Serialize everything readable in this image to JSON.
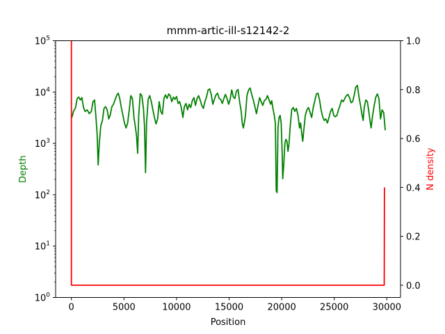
{
  "chart_data": {
    "type": "line",
    "title": "mmm-artic-ill-s12142-2",
    "xlabel": "Position",
    "ylabel_left": "Depth",
    "ylabel_right": "N density",
    "xlim": [
      -1500,
      31300
    ],
    "xticks": [
      0,
      5000,
      10000,
      15000,
      20000,
      25000,
      30000
    ],
    "xtick_labels": [
      "0",
      "5000",
      "10000",
      "15000",
      "20000",
      "25000",
      "30000"
    ],
    "ylim_left": [
      1,
      100000
    ],
    "yscale_left": "log",
    "yticks_left": [
      {
        "base": "10",
        "exp": "0",
        "value": 1
      },
      {
        "base": "10",
        "exp": "1",
        "value": 10
      },
      {
        "base": "10",
        "exp": "2",
        "value": 100
      },
      {
        "base": "10",
        "exp": "3",
        "value": 1000
      },
      {
        "base": "10",
        "exp": "4",
        "value": 10000
      },
      {
        "base": "10",
        "exp": "5",
        "value": 100000
      }
    ],
    "ylim_right": [
      -0.05,
      1.0
    ],
    "yticks_right": [
      0.0,
      0.2,
      0.4,
      0.6,
      0.8,
      1.0
    ],
    "ytick_labels_right": [
      "0.0",
      "0.2",
      "0.4",
      "0.6",
      "0.8",
      "1.0"
    ],
    "colors": {
      "depth": "#008000",
      "n_density": "#ff0000",
      "axis": "#000000"
    },
    "grid": false,
    "series": [
      {
        "axis": "left",
        "color": "#008000",
        "points": [
          [
            50,
            3200
          ],
          [
            200,
            4200
          ],
          [
            400,
            5000
          ],
          [
            550,
            7500
          ],
          [
            700,
            8000
          ],
          [
            850,
            7000
          ],
          [
            1000,
            7800
          ],
          [
            1150,
            5000
          ],
          [
            1300,
            4200
          ],
          [
            1500,
            4500
          ],
          [
            1700,
            3800
          ],
          [
            1900,
            4200
          ],
          [
            2050,
            6500
          ],
          [
            2200,
            7000
          ],
          [
            2350,
            3000
          ],
          [
            2450,
            1500
          ],
          [
            2550,
            380
          ],
          [
            2650,
            1000
          ],
          [
            2800,
            2200
          ],
          [
            2950,
            2800
          ],
          [
            3100,
            4800
          ],
          [
            3250,
            5200
          ],
          [
            3400,
            4500
          ],
          [
            3550,
            3000
          ],
          [
            3700,
            3600
          ],
          [
            3850,
            5200
          ],
          [
            4000,
            5800
          ],
          [
            4150,
            7000
          ],
          [
            4300,
            8500
          ],
          [
            4450,
            9500
          ],
          [
            4600,
            7500
          ],
          [
            4750,
            5000
          ],
          [
            4900,
            3500
          ],
          [
            5050,
            2500
          ],
          [
            5200,
            2000
          ],
          [
            5350,
            2500
          ],
          [
            5500,
            4500
          ],
          [
            5650,
            8500
          ],
          [
            5800,
            7500
          ],
          [
            5950,
            3200
          ],
          [
            6100,
            2000
          ],
          [
            6200,
            1400
          ],
          [
            6300,
            640
          ],
          [
            6400,
            3500
          ],
          [
            6550,
            9300
          ],
          [
            6700,
            8500
          ],
          [
            6850,
            4800
          ],
          [
            6950,
            2200
          ],
          [
            7050,
            270
          ],
          [
            7150,
            2500
          ],
          [
            7300,
            7200
          ],
          [
            7450,
            8500
          ],
          [
            7600,
            6500
          ],
          [
            7750,
            4500
          ],
          [
            7900,
            3200
          ],
          [
            8050,
            2400
          ],
          [
            8200,
            3000
          ],
          [
            8350,
            6500
          ],
          [
            8500,
            4200
          ],
          [
            8650,
            3700
          ],
          [
            8800,
            7500
          ],
          [
            8950,
            8800
          ],
          [
            9100,
            7500
          ],
          [
            9250,
            9200
          ],
          [
            9400,
            8500
          ],
          [
            9550,
            6500
          ],
          [
            9700,
            8000
          ],
          [
            9850,
            7200
          ],
          [
            10000,
            8200
          ],
          [
            10150,
            6000
          ],
          [
            10300,
            6500
          ],
          [
            10450,
            5000
          ],
          [
            10600,
            3200
          ],
          [
            10750,
            5200
          ],
          [
            10900,
            6000
          ],
          [
            11050,
            4500
          ],
          [
            11200,
            5800
          ],
          [
            11350,
            5000
          ],
          [
            11500,
            6800
          ],
          [
            11650,
            7800
          ],
          [
            11800,
            5500
          ],
          [
            11950,
            7500
          ],
          [
            12100,
            8500
          ],
          [
            12250,
            7000
          ],
          [
            12400,
            5500
          ],
          [
            12550,
            4800
          ],
          [
            12700,
            6500
          ],
          [
            12850,
            8000
          ],
          [
            13000,
            11000
          ],
          [
            13150,
            11500
          ],
          [
            13300,
            9000
          ],
          [
            13450,
            5800
          ],
          [
            13600,
            7200
          ],
          [
            13750,
            8800
          ],
          [
            13900,
            9500
          ],
          [
            14050,
            7500
          ],
          [
            14200,
            7200
          ],
          [
            14350,
            6000
          ],
          [
            14500,
            7500
          ],
          [
            14650,
            9000
          ],
          [
            14800,
            7500
          ],
          [
            14950,
            5800
          ],
          [
            15100,
            7200
          ],
          [
            15250,
            11000
          ],
          [
            15400,
            8000
          ],
          [
            15550,
            7500
          ],
          [
            15700,
            10500
          ],
          [
            15850,
            11200
          ],
          [
            16000,
            6500
          ],
          [
            16150,
            4200
          ],
          [
            16250,
            2500
          ],
          [
            16350,
            2000
          ],
          [
            16450,
            2500
          ],
          [
            16550,
            3500
          ],
          [
            16700,
            8500
          ],
          [
            16850,
            11000
          ],
          [
            17000,
            12000
          ],
          [
            17150,
            9000
          ],
          [
            17300,
            7000
          ],
          [
            17450,
            5200
          ],
          [
            17600,
            3800
          ],
          [
            17750,
            5500
          ],
          [
            17900,
            7800
          ],
          [
            18050,
            6500
          ],
          [
            18200,
            5500
          ],
          [
            18350,
            6800
          ],
          [
            18500,
            7200
          ],
          [
            18650,
            8500
          ],
          [
            18800,
            7000
          ],
          [
            18950,
            5800
          ],
          [
            19050,
            6800
          ],
          [
            19150,
            5000
          ],
          [
            19300,
            3500
          ],
          [
            19400,
            2500
          ],
          [
            19480,
            120
          ],
          [
            19560,
            110
          ],
          [
            19650,
            2000
          ],
          [
            19750,
            3200
          ],
          [
            19850,
            3500
          ],
          [
            19950,
            2500
          ],
          [
            20050,
            600
          ],
          [
            20100,
            205
          ],
          [
            20200,
            380
          ],
          [
            20300,
            1000
          ],
          [
            20400,
            1200
          ],
          [
            20500,
            1100
          ],
          [
            20600,
            700
          ],
          [
            20700,
            1000
          ],
          [
            20800,
            2000
          ],
          [
            20950,
            4500
          ],
          [
            21100,
            5000
          ],
          [
            21250,
            4200
          ],
          [
            21400,
            4800
          ],
          [
            21550,
            3500
          ],
          [
            21700,
            2000
          ],
          [
            21800,
            2500
          ],
          [
            21900,
            1600
          ],
          [
            22000,
            1100
          ],
          [
            22100,
            1800
          ],
          [
            22250,
            3500
          ],
          [
            22400,
            4500
          ],
          [
            22550,
            5000
          ],
          [
            22700,
            4000
          ],
          [
            22850,
            3200
          ],
          [
            23000,
            5000
          ],
          [
            23150,
            6800
          ],
          [
            23300,
            9200
          ],
          [
            23450,
            9500
          ],
          [
            23600,
            7000
          ],
          [
            23750,
            4500
          ],
          [
            23900,
            3300
          ],
          [
            24050,
            2800
          ],
          [
            24200,
            3000
          ],
          [
            24350,
            2500
          ],
          [
            24500,
            3200
          ],
          [
            24650,
            4200
          ],
          [
            24800,
            4800
          ],
          [
            24950,
            3500
          ],
          [
            25100,
            3300
          ],
          [
            25250,
            3500
          ],
          [
            25400,
            4500
          ],
          [
            25550,
            5500
          ],
          [
            25700,
            7000
          ],
          [
            25850,
            6500
          ],
          [
            26000,
            7500
          ],
          [
            26150,
            8500
          ],
          [
            26300,
            9000
          ],
          [
            26450,
            7800
          ],
          [
            26600,
            6200
          ],
          [
            26750,
            6500
          ],
          [
            26900,
            8800
          ],
          [
            27050,
            12500
          ],
          [
            27200,
            13500
          ],
          [
            27350,
            8000
          ],
          [
            27500,
            5500
          ],
          [
            27650,
            3500
          ],
          [
            27750,
            2800
          ],
          [
            27850,
            5000
          ],
          [
            28000,
            7000
          ],
          [
            28150,
            6500
          ],
          [
            28300,
            4000
          ],
          [
            28400,
            2800
          ],
          [
            28500,
            2000
          ],
          [
            28650,
            3500
          ],
          [
            28800,
            5500
          ],
          [
            28950,
            8000
          ],
          [
            29100,
            9200
          ],
          [
            29250,
            7500
          ],
          [
            29400,
            3000
          ],
          [
            29550,
            4500
          ],
          [
            29700,
            4000
          ],
          [
            29850,
            1800
          ]
        ]
      },
      {
        "axis": "right",
        "color": "#ff0000",
        "points": [
          [
            0,
            1.0
          ],
          [
            0,
            0.0
          ],
          [
            29750,
            0.0
          ],
          [
            29770,
            0.4
          ]
        ]
      }
    ]
  }
}
